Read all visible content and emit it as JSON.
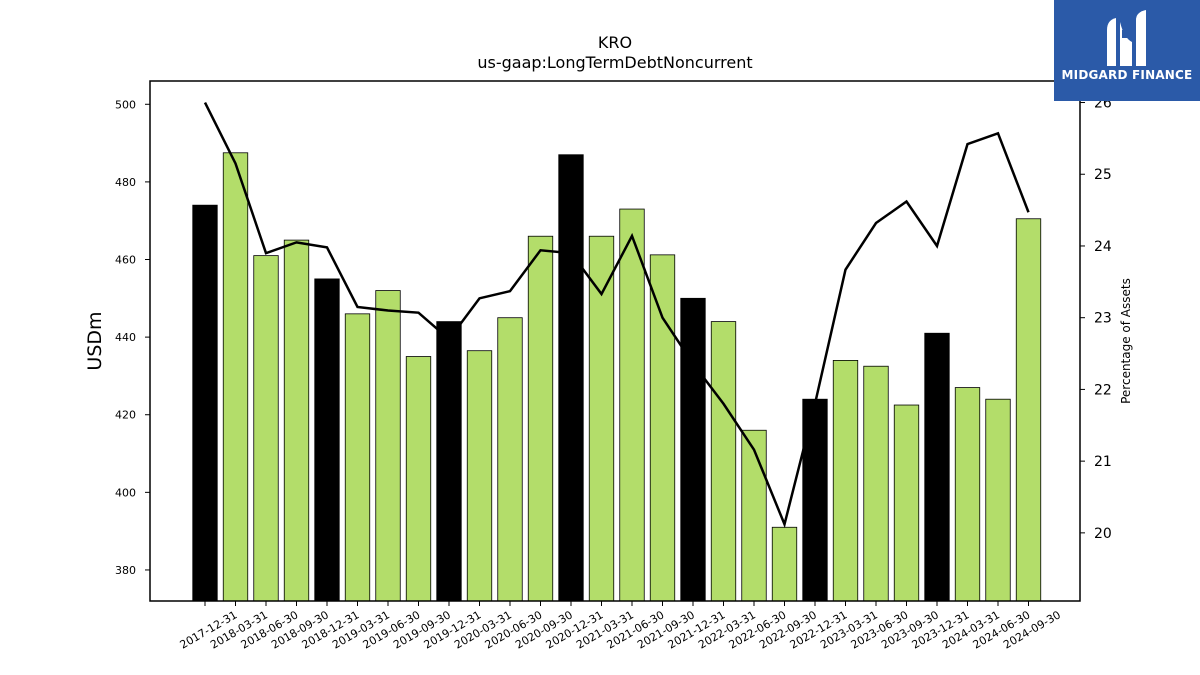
{
  "chart_data": {
    "type": "bar",
    "title": "KRO",
    "subtitle": "us-gaap:LongTermDebtNoncurrent",
    "ylabel": "USDm",
    "y2label": "Percentage of Assets",
    "ylim": [
      372,
      506
    ],
    "y2lim": [
      19.05,
      26.3
    ],
    "yticks": [
      380,
      400,
      420,
      440,
      460,
      480,
      500
    ],
    "y2ticks": [
      20,
      21,
      22,
      23,
      24,
      25,
      26
    ],
    "categories": [
      "2017-12-31",
      "2018-03-31",
      "2018-06-30",
      "2018-09-30",
      "2018-12-31",
      "2019-03-31",
      "2019-06-30",
      "2019-09-30",
      "2019-12-31",
      "2020-03-31",
      "2020-06-30",
      "2020-09-30",
      "2020-12-31",
      "2021-03-31",
      "2021-06-30",
      "2021-09-30",
      "2021-12-31",
      "2022-03-31",
      "2022-06-30",
      "2022-09-30",
      "2022-12-31",
      "2023-03-31",
      "2023-06-30",
      "2023-09-30",
      "2023-12-31",
      "2024-03-31",
      "2024-06-30",
      "2024-09-30"
    ],
    "series": [
      {
        "type": "bar",
        "values": [
          474,
          487.5,
          461,
          465,
          455,
          446,
          452,
          435,
          444,
          436.5,
          445,
          466,
          487,
          466,
          473,
          461.2,
          450,
          444,
          416,
          391,
          424,
          434,
          432.5,
          422.5,
          441,
          427,
          424,
          470.5
        ],
        "colors": [
          "#000000",
          "#b3dd6a",
          "#b3dd6a",
          "#b3dd6a",
          "#000000",
          "#b3dd6a",
          "#b3dd6a",
          "#b3dd6a",
          "#000000",
          "#b3dd6a",
          "#b3dd6a",
          "#b3dd6a",
          "#000000",
          "#b3dd6a",
          "#b3dd6a",
          "#b3dd6a",
          "#000000",
          "#b3dd6a",
          "#b3dd6a",
          "#b3dd6a",
          "#000000",
          "#b3dd6a",
          "#b3dd6a",
          "#b3dd6a",
          "#000000",
          "#b3dd6a",
          "#b3dd6a",
          "#b3dd6a"
        ]
      },
      {
        "type": "line",
        "axis": "right",
        "color": "#000000",
        "values": [
          26.0,
          25.15,
          23.9,
          24.05,
          23.98,
          23.15,
          23.1,
          23.07,
          22.7,
          23.27,
          23.37,
          23.94,
          23.9,
          23.33,
          24.14,
          23.0,
          22.36,
          21.8,
          21.16,
          20.12,
          21.8,
          23.67,
          24.32,
          24.62,
          24.0,
          25.42,
          25.57,
          24.47
        ]
      }
    ],
    "grid": false,
    "legend": "none"
  },
  "logo": {
    "text": "MIDGARD FINANCE"
  }
}
